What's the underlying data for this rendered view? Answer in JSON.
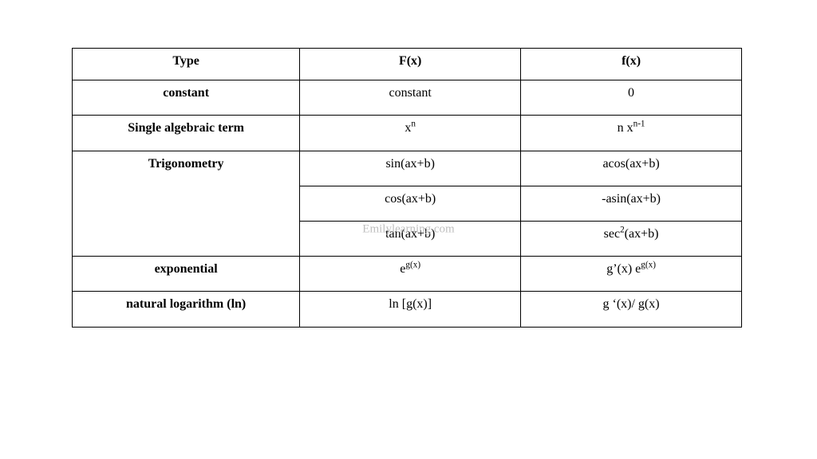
{
  "table": {
    "type": "table",
    "border_color": "#000000",
    "background_color": "#ffffff",
    "text_color": "#000000",
    "font_family": "Times New Roman",
    "header_fontsize_pt": 12,
    "body_fontsize_pt": 12,
    "column_widths_pct": [
      34,
      33,
      33
    ],
    "columns": [
      "Type",
      "F(x)",
      "f(x)"
    ],
    "rows": [
      {
        "type": "constant",
        "Fx_html": "constant",
        "fx_html": "0",
        "rowspan": 1
      },
      {
        "type": "Single algebraic term",
        "Fx_html": "x<sup>n</sup>",
        "fx_html": "n x<sup>n-1</sup>",
        "rowspan": 1
      },
      {
        "type": "Trigonometry",
        "Fx_html": "sin(ax+b)",
        "fx_html": "acos(ax+b)",
        "rowspan": 3
      },
      {
        "type": null,
        "Fx_html": "cos(ax+b)",
        "fx_html": "-asin(ax+b)",
        "rowspan": 0
      },
      {
        "type": null,
        "Fx_html": "tan(ax+b)",
        "fx_html": "sec<sup>2</sup>(ax+b)",
        "rowspan": 0
      },
      {
        "type": "exponential",
        "Fx_html": "e<sup>g(x)</sup>",
        "fx_html": "g’(x) e<sup>g(x)</sup>",
        "rowspan": 1
      },
      {
        "type": "natural logarithm (ln)",
        "Fx_html": "ln [g(x)]",
        "fx_html": "g ‘(x)/ g(x)",
        "rowspan": 1
      }
    ]
  },
  "watermark": {
    "text": "Emilylearning.com",
    "color": "#bfbfbf",
    "fontsize_pt": 11
  }
}
